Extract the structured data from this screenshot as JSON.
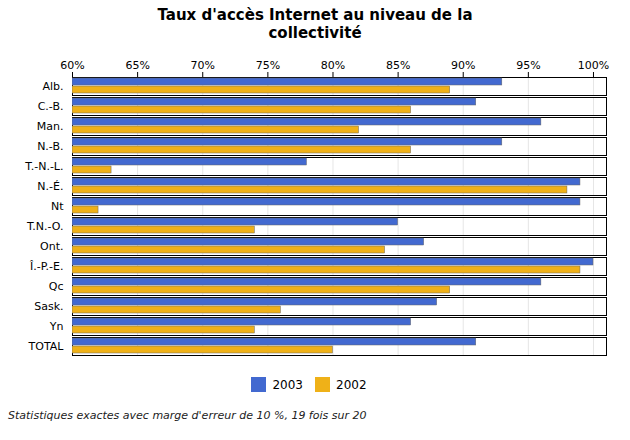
{
  "chart_data": {
    "type": "bar",
    "orientation": "horizontal",
    "title": "Taux d'accès Internet au niveau de la\ncollectivité",
    "categories": [
      "Alb.",
      "C.-B.",
      "Man.",
      "N.-B.",
      "T.-N.-L.",
      "N.-É.",
      "Nt",
      "T.N.-O.",
      "Ont.",
      "Î.-P.-E.",
      "Qc",
      "Sask.",
      "Yn",
      "TOTAL"
    ],
    "series": [
      {
        "name": "2003",
        "values": [
          93,
          91,
          96,
          93,
          78,
          99,
          99,
          85,
          87,
          100,
          96,
          88,
          86,
          91
        ]
      },
      {
        "name": "2002",
        "values": [
          89,
          86,
          82,
          86,
          63,
          98,
          62,
          74,
          84,
          99,
          89,
          76,
          74,
          80
        ]
      }
    ],
    "xlim": [
      60,
      101
    ],
    "xticks": [
      {
        "value": 60,
        "label": "60%"
      },
      {
        "value": 65,
        "label": "65%"
      },
      {
        "value": 70,
        "label": "70%"
      },
      {
        "value": 75,
        "label": "75%"
      },
      {
        "value": 80,
        "label": "80%"
      },
      {
        "value": 85,
        "label": "85%"
      },
      {
        "value": 90,
        "label": "90%"
      },
      {
        "value": 95,
        "label": "95%"
      },
      {
        "value": 100,
        "label": "100%"
      }
    ],
    "grid": true,
    "legend": "bottom",
    "annotations": [
      "Statistiques exactes avec marge d'erreur de 10 %, 19 fois sur 20"
    ]
  }
}
